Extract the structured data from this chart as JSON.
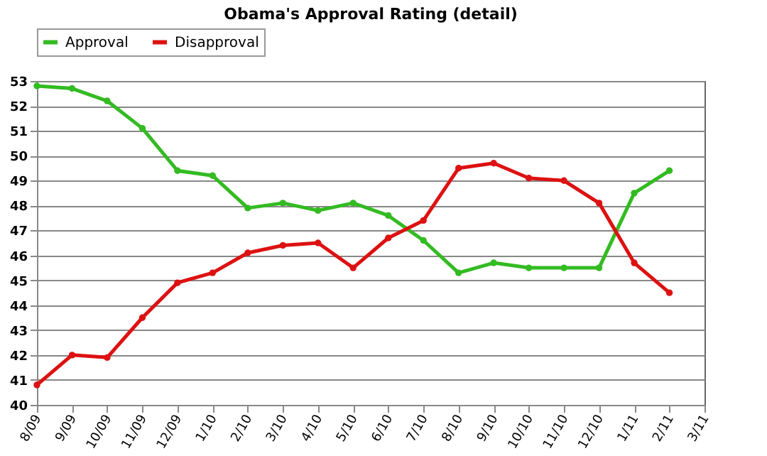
{
  "chart_data": {
    "type": "line",
    "title": "Obama's Approval Rating (detail)",
    "categories": [
      "8/09",
      "9/09",
      "10/09",
      "11/09",
      "12/09",
      "1/10",
      "2/10",
      "3/10",
      "4/10",
      "5/10",
      "6/10",
      "7/10",
      "8/10",
      "9/10",
      "10/10",
      "11/10",
      "12/10",
      "1/11",
      "2/11",
      "3/11"
    ],
    "series": [
      {
        "name": "Approval",
        "color": "#33bb22",
        "values": [
          52.8,
          52.7,
          52.2,
          51.1,
          49.4,
          49.2,
          47.9,
          48.1,
          47.8,
          48.1,
          47.6,
          46.6,
          45.3,
          45.7,
          45.5,
          45.5,
          45.5,
          48.5,
          49.4,
          null
        ]
      },
      {
        "name": "Disapproval",
        "color": "#dd1111",
        "values": [
          40.8,
          42.0,
          41.9,
          43.5,
          44.9,
          45.3,
          46.1,
          46.4,
          46.5,
          45.5,
          46.7,
          47.4,
          49.5,
          49.7,
          49.1,
          49.0,
          48.1,
          45.7,
          44.5,
          null
        ]
      }
    ],
    "ylim": [
      40,
      53
    ],
    "yticks": [
      40,
      41,
      42,
      43,
      44,
      45,
      46,
      47,
      48,
      49,
      50,
      51,
      52,
      53
    ],
    "grid": "y",
    "legend": "top",
    "marker": "circle",
    "line_style": "solid"
  }
}
